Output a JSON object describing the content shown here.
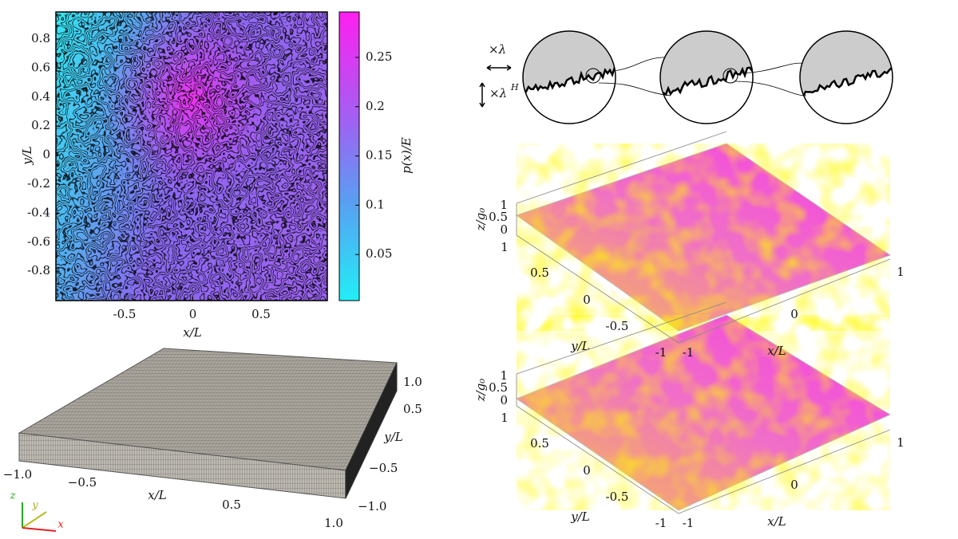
{
  "contour_map": {
    "x_label": "x/L",
    "y_label": "y/L",
    "x_ticks": [
      "-0.5",
      "0",
      "0.5"
    ],
    "y_ticks": [
      "0.8",
      "0.6",
      "0.4",
      "0.2",
      "0",
      "-0.2",
      "-0.4",
      "-0.6",
      "-0.8"
    ],
    "colorbar_label": "p(x)/E",
    "colorbar_ticks": [
      "0.25",
      "0.2",
      "0.15",
      "0.1",
      "0.05"
    ]
  },
  "mesh": {
    "x_ticks": [
      "−1.0",
      "−0.5",
      "0.5",
      "1.0"
    ],
    "x_label": "x/L",
    "y_ticks": [
      "1.0",
      "0.5",
      "−0.5",
      "−1.0"
    ],
    "y_label": "y/L",
    "triad": [
      "z",
      "y",
      "x"
    ]
  },
  "scaling": {
    "horizontal": "×λ",
    "vertical": "×λ",
    "vertical_exponent": "H"
  },
  "surfaces": [
    {
      "z_label": "z/g₀",
      "z_ticks": [
        "1",
        "0.5",
        "0"
      ],
      "y_ticks": [
        "1",
        "0.5",
        "0",
        "-0.5",
        "-1"
      ],
      "y_label": "y/L",
      "x_ticks": [
        "-1",
        "0",
        "1"
      ],
      "x_label": "x/L"
    },
    {
      "z_label": "z/g₀",
      "z_ticks": [
        "1",
        "0.5",
        "0"
      ],
      "y_ticks": [
        "1",
        "0.5",
        "0",
        "-0.5",
        "-1"
      ],
      "y_label": "y/L",
      "x_ticks": [
        "-1",
        "0",
        "1"
      ],
      "x_label": "x/L"
    }
  ]
}
